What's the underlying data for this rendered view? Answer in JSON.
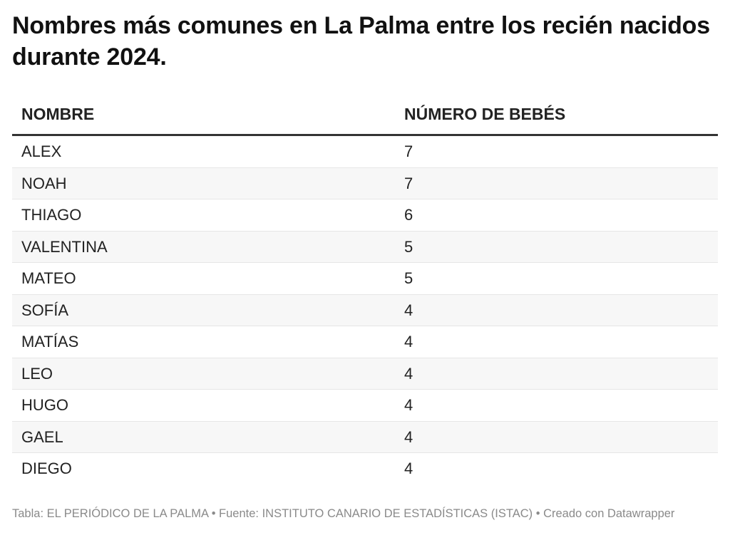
{
  "chart_data": {
    "type": "table",
    "title": "Nombres más comunes en La Palma entre los recién nacidos durante 2024.",
    "columns": [
      "NOMBRE",
      "NÚMERO DE BEBÉS"
    ],
    "rows": [
      {
        "name": "ALEX",
        "value": 7
      },
      {
        "name": "NOAH",
        "value": 7
      },
      {
        "name": "THIAGO",
        "value": 6
      },
      {
        "name": "VALENTINA",
        "value": 5
      },
      {
        "name": "MATEO",
        "value": 5
      },
      {
        "name": "SOFÍA",
        "value": 4
      },
      {
        "name": "MATÍAS",
        "value": 4
      },
      {
        "name": "LEO",
        "value": 4
      },
      {
        "name": "HUGO",
        "value": 4
      },
      {
        "name": "GAEL",
        "value": 4
      },
      {
        "name": "DIEGO",
        "value": 4
      }
    ]
  },
  "footer": "Tabla: EL PERIÓDICO DE LA PALMA • Fuente: INSTITUTO CANARIO DE ESTADÍSTICAS (ISTAC) • Creado con Datawrapper"
}
